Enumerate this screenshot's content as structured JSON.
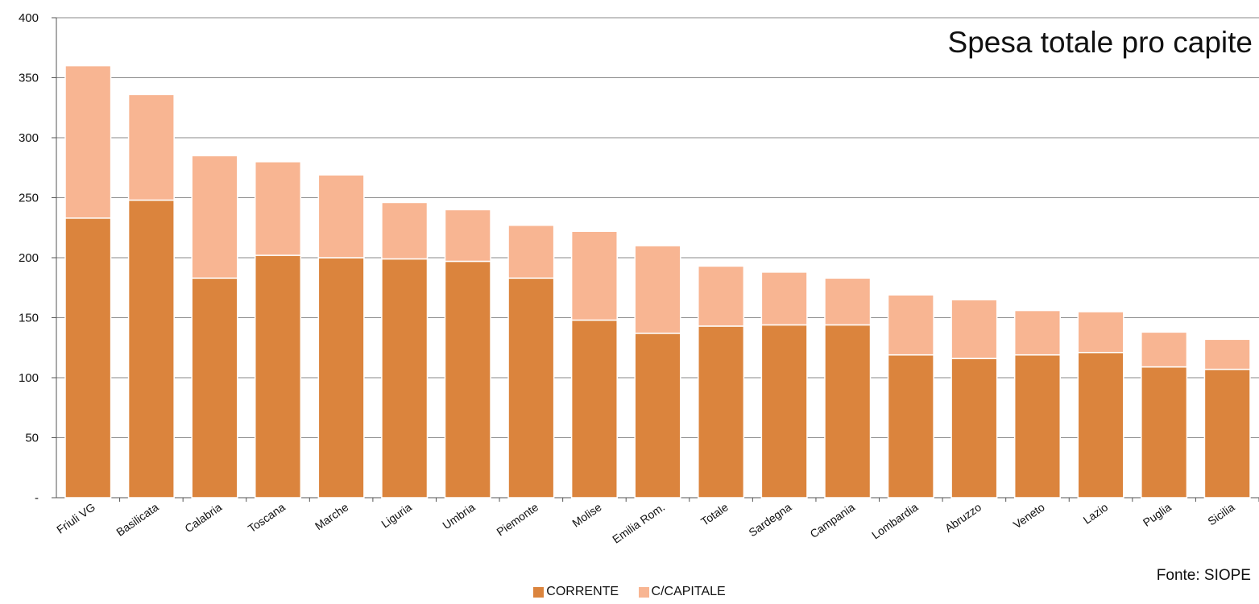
{
  "chart_data": {
    "type": "bar",
    "stacked": true,
    "title": "Spesa totale pro capite",
    "source": "Fonte: SIOPE",
    "categories": [
      "Friuli VG",
      "Basilicata",
      "Calabria",
      "Toscana",
      "Marche",
      "Liguria",
      "Umbria",
      "Piemonte",
      "Molise",
      "Emilia Rom.",
      "Totale",
      "Sardegna",
      "Campania",
      "Lombardia",
      "Abruzzo",
      "Veneto",
      "Lazio",
      "Puglia",
      "Sicilia"
    ],
    "series": [
      {
        "name": "CORRENTE",
        "color": "#DB843D",
        "values": [
          233,
          248,
          183,
          202,
          200,
          199,
          197,
          183,
          148,
          137,
          143,
          144,
          144,
          119,
          116,
          119,
          121,
          109,
          107
        ]
      },
      {
        "name": "C/CAPITALE",
        "color": "#F8B592",
        "values": [
          127,
          88,
          102,
          78,
          69,
          47,
          43,
          44,
          74,
          73,
          50,
          44,
          39,
          50,
          49,
          37,
          34,
          29,
          25
        ]
      }
    ],
    "yticks": [
      "-",
      "50",
      "100",
      "150",
      "200",
      "250",
      "300",
      "350",
      "400"
    ],
    "ylim": [
      0,
      400
    ],
    "grid": true,
    "legend": "bottom"
  }
}
